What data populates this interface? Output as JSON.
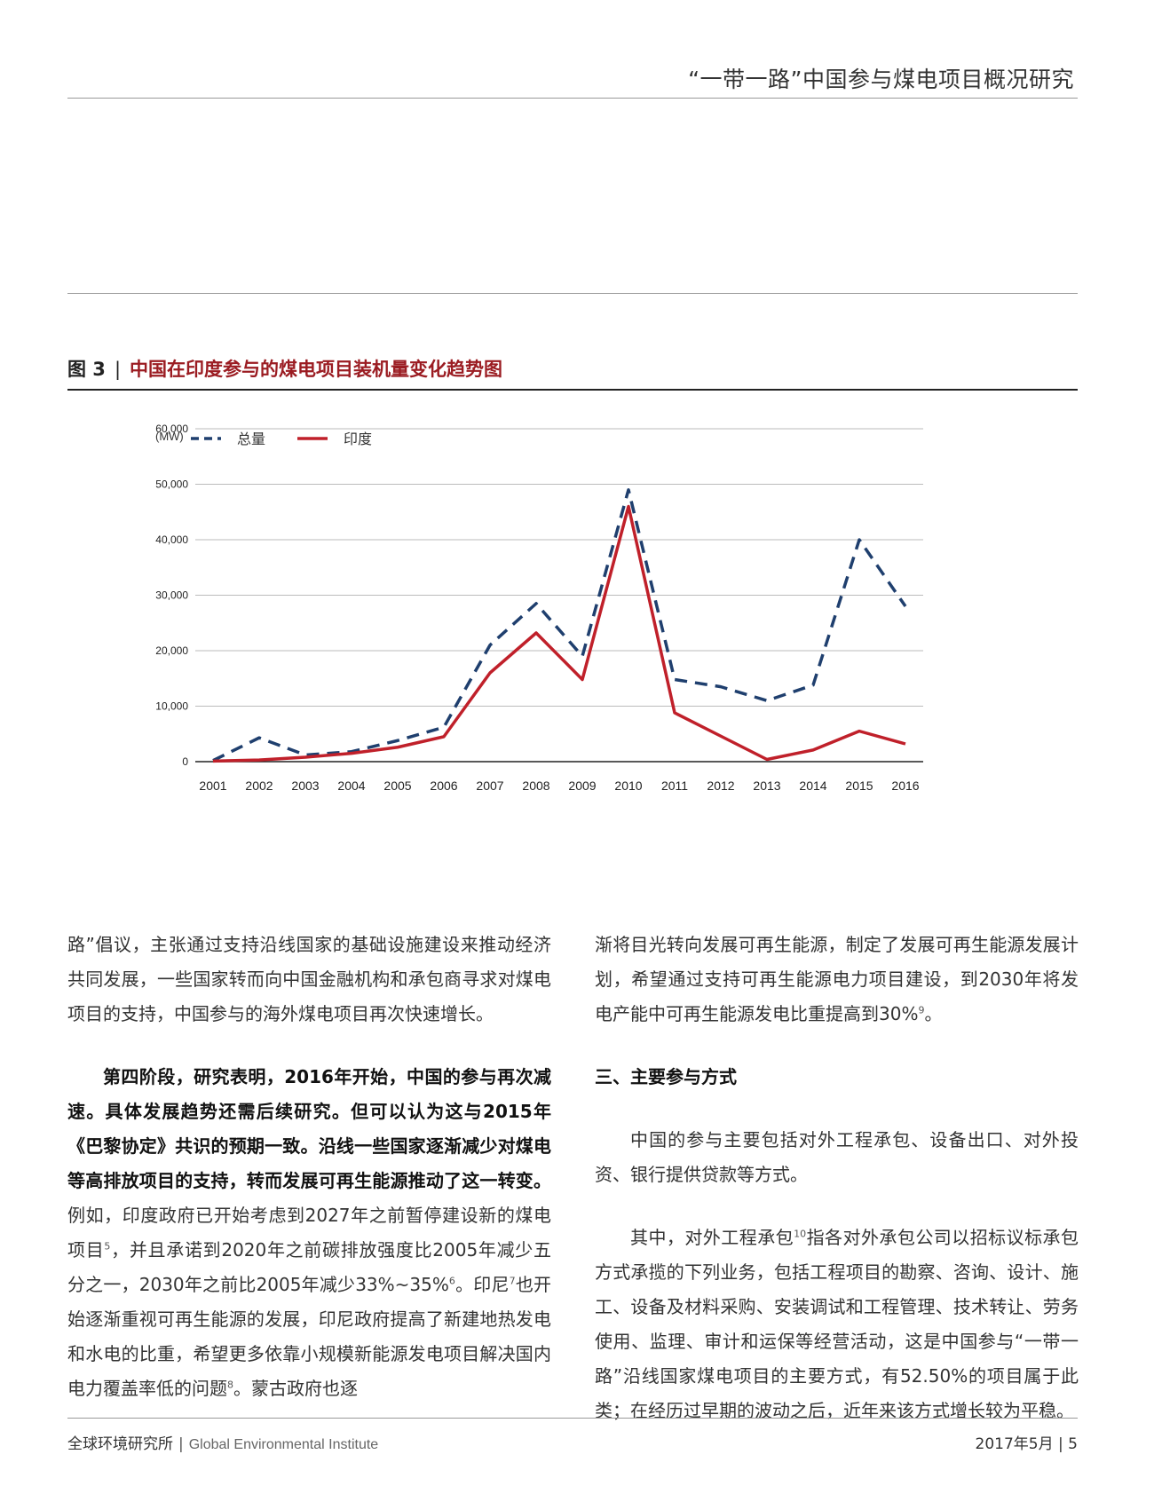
{
  "header": {
    "running_title": "“一带一路”中国参与煤电项目概况研究"
  },
  "figure": {
    "number": "图 3",
    "separator": "|",
    "title": "中国在印度参与的煤电项目装机量变化趋势图"
  },
  "chart_data": {
    "type": "line",
    "unit_label": "(MW)",
    "categories": [
      "2001",
      "2002",
      "2003",
      "2004",
      "2005",
      "2006",
      "2007",
      "2008",
      "2009",
      "2010",
      "2011",
      "2012",
      "2013",
      "2014",
      "2015",
      "2016"
    ],
    "ylim": [
      0,
      60000
    ],
    "yticks": [
      "0",
      "10,000",
      "20,000",
      "30,000",
      "40,000",
      "50,000",
      "60,000"
    ],
    "ytick_values": [
      0,
      10000,
      20000,
      30000,
      40000,
      50000,
      60000
    ],
    "grid": true,
    "legend_position": "top-left",
    "series": [
      {
        "name": "总量",
        "color": "#1f3f6e",
        "style": "dashed",
        "values": [
          200,
          4300,
          1200,
          1800,
          3800,
          6200,
          21000,
          28500,
          19000,
          49000,
          14800,
          13500,
          11000,
          13800,
          40000,
          28000
        ]
      },
      {
        "name": "印度",
        "color": "#c0202a",
        "style": "solid",
        "values": [
          100,
          300,
          800,
          1500,
          2600,
          4500,
          16000,
          23200,
          14800,
          46000,
          8800,
          4600,
          400,
          2100,
          5500,
          3200
        ]
      }
    ]
  },
  "body": {
    "left": [
      {
        "text": "路”倡议，主张通过支持沿线国家的基础设施建设来推动经济共同发展，一些国家转而向中国金融机构和承包商寻求对煤电项目的支持，中国参与的海外煤电项目再次快速增长。"
      },
      {
        "bold": "第四阶段，研究表明，2016年开始，中国的参与再次减速。具体发展趋势还需后续研究。但可以认为这与2015年《巴黎协定》共识的预期一致。沿线一些国家逐渐减少对煤电等高排放项目的支持，转而发展可再生能源推动了这一转变。",
        "t1": "例如，印度政府已开始考虑到2027年之前暂停建设新的煤电项目",
        "s1": "5",
        "t2": "，并且承诺到2020年之前碳排放强度比2005年减少五分之一，2030年之前比2005年减少33%~35%",
        "s2": "6",
        "t3": "。印尼",
        "s3": "7",
        "t4": "也开始逐渐重视可再生能源的发展，印尼政府提高了新建地热发电和水电的比重，希望更多依靠小规模新能源发电项目解决国内电力覆盖率低的问题",
        "s4": "8",
        "t5": "。蒙古政府也逐"
      }
    ],
    "right": {
      "p1": "渐将目光转向发展可再生能源，制定了发展可再生能源发展计划，希望通过支持可再生能源电力项目建设，到2030年将发电产能中可再生能源发电比重提高到30%",
      "p1_sup": "9",
      "p1_end": "。",
      "section": "三、主要参与方式",
      "p2": "中国的参与主要包括对外工程承包、设备出口、对外投资、银行提供贷款等方式。",
      "p3a": "其中，对外工程承包",
      "p3_sup": "10",
      "p3b": "指各对外承包公司以招标议标承包方式承揽的下列业务，包括工程项目的勘察、咨询、设计、施工、设备及材料采购、安装调试和工程管理、技术转让、劳务使用、监理、审计和运保等经营活动，这是中国参与“一带一路”沿线国家煤电项目的主要方式，有52.50%的项目属于此类；在经历过早期的波动之后，近年来该方式增长较为平稳。"
    }
  },
  "footer": {
    "org_cn": "全球环境研究所",
    "separator": "|",
    "org_en": "Global Environmental Institute",
    "date": "2017年5月",
    "page_sep": "|",
    "page": "5"
  }
}
